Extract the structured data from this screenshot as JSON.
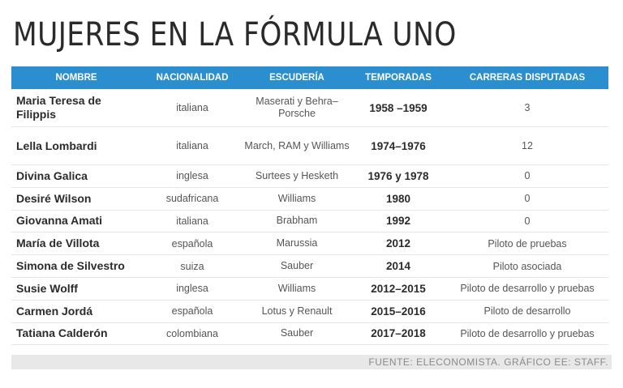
{
  "title": "MUJERES EN LA FÓRMULA UNO",
  "headers": {
    "name": "NOMBRE",
    "nationality": "NACIONALIDAD",
    "team": "ESCUDERÍA",
    "seasons": "TEMPORADAS",
    "races": "CARRERAS DISPUTADAS"
  },
  "rows": [
    {
      "name": "Maria Teresa de Filippis",
      "nationality": "italiana",
      "team": "Maserati y Behra–Porsche",
      "seasons": "1958 –1959",
      "races": "3"
    },
    {
      "name": "Lella Lombardi",
      "nationality": "italiana",
      "team": "March, RAM y Williams",
      "seasons": "1974–1976",
      "races": "12"
    },
    {
      "name": "Divina Galica",
      "nationality": "inglesa",
      "team": "Surtees y Hesketh",
      "seasons": "1976 y 1978",
      "races": "0"
    },
    {
      "name": "Desiré Wilson",
      "nationality": "sudafricana",
      "team": "Williams",
      "seasons": "1980",
      "races": "0"
    },
    {
      "name": "Giovanna Amati",
      "nationality": "italiana",
      "team": "Brabham",
      "seasons": "1992",
      "races": "0"
    },
    {
      "name": "María de Villota",
      "nationality": "española",
      "team": "Marussia",
      "seasons": "2012",
      "races": "Piloto de pruebas"
    },
    {
      "name": "Simona de Silvestro",
      "nationality": "suiza",
      "team": "Sauber",
      "seasons": "2014",
      "races": "Piloto asociada"
    },
    {
      "name": "Susie Wolff",
      "nationality": "inglesa",
      "team": "Williams",
      "seasons": "2012–2015",
      "races": "Piloto de desarrollo y pruebas"
    },
    {
      "name": "Carmen Jordá",
      "nationality": "española",
      "team": "Lotus y Renault",
      "seasons": "2015–2016",
      "races": "Piloto de desarrollo"
    },
    {
      "name": "Tatiana Calderón",
      "nationality": "colombiana",
      "team": "Sauber",
      "seasons": "2017–2018",
      "races": "Piloto de desarrollo y pruebas"
    }
  ],
  "footer": "FUENTE: ELECONOMISTA. GRÁFICO EE: STAFF."
}
